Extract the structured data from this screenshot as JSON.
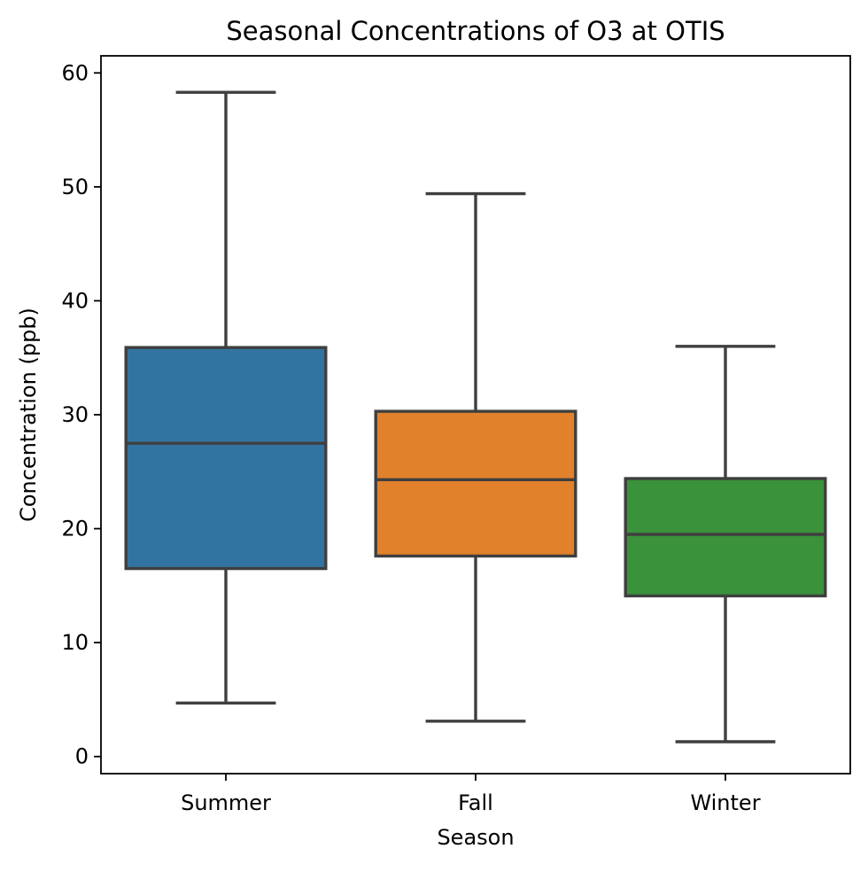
{
  "chart_data": {
    "type": "box",
    "title": "Seasonal Concentrations of O3 at OTIS",
    "xlabel": "Season",
    "ylabel": "Concentration (ppb)",
    "ylim": [
      -1.5,
      61.5
    ],
    "yticks": [
      0,
      10,
      20,
      30,
      40,
      50,
      60
    ],
    "grid": false,
    "categories": [
      "Summer",
      "Fall",
      "Winter"
    ],
    "boxes": [
      {
        "category": "Summer",
        "whisker_low": 4.7,
        "q1": 16.5,
        "median": 27.5,
        "q3": 35.9,
        "whisker_high": 58.3,
        "color": "#3274a1"
      },
      {
        "category": "Fall",
        "whisker_low": 3.1,
        "q1": 17.6,
        "median": 24.3,
        "q3": 30.3,
        "whisker_high": 49.4,
        "color": "#e1812c"
      },
      {
        "category": "Winter",
        "whisker_low": 1.3,
        "q1": 14.1,
        "median": 19.5,
        "q3": 24.4,
        "whisker_high": 36.0,
        "color": "#3a923a"
      }
    ],
    "line_color": "#3f3f3f"
  }
}
